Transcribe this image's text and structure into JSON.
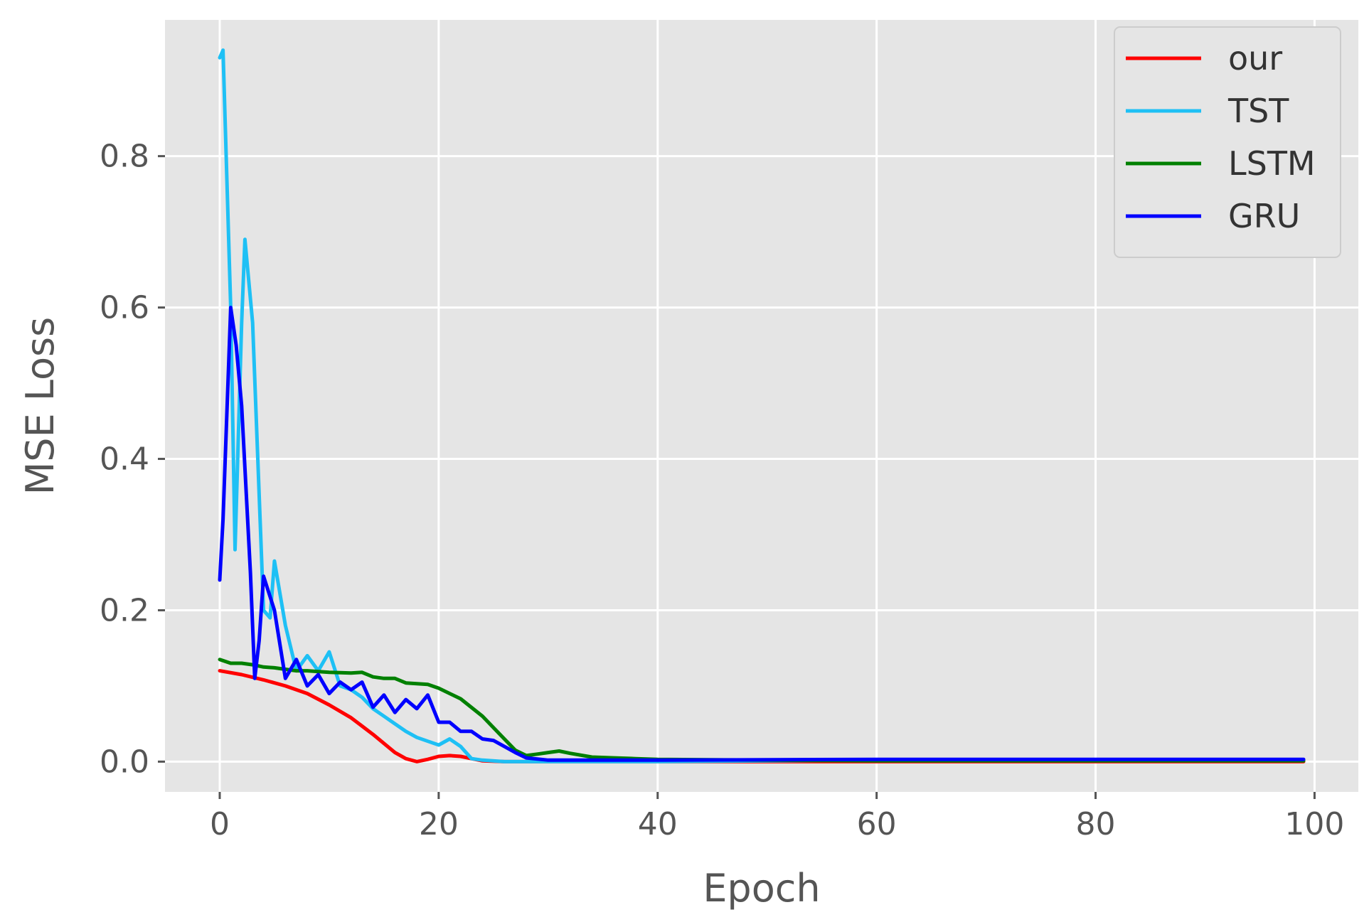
{
  "chart_data": {
    "type": "line",
    "title": "",
    "xlabel": "Epoch",
    "ylabel": "MSE Loss",
    "xlim": [
      -5,
      104
    ],
    "ylim": [
      -0.04,
      0.98
    ],
    "xticks": [
      0,
      20,
      40,
      60,
      80,
      100
    ],
    "yticks": [
      0.0,
      0.2,
      0.4,
      0.6,
      0.8
    ],
    "xtick_labels": [
      "0",
      "20",
      "40",
      "60",
      "80",
      "100"
    ],
    "ytick_labels": [
      "0.0",
      "0.2",
      "0.4",
      "0.6",
      "0.8"
    ],
    "grid": true,
    "legend_position": "top-right",
    "style": {
      "plot_background": "#e5e5e5",
      "grid_color": "#ffffff",
      "legend_background": "#e5e5e5",
      "legend_border": "#cccccc"
    },
    "series": [
      {
        "name": "our",
        "color": "#ff0000",
        "points": [
          [
            0,
            0.12
          ],
          [
            2,
            0.115
          ],
          [
            4,
            0.108
          ],
          [
            6,
            0.1
          ],
          [
            8,
            0.09
          ],
          [
            10,
            0.075
          ],
          [
            12,
            0.058
          ],
          [
            14,
            0.036
          ],
          [
            16,
            0.012
          ],
          [
            17,
            0.004
          ],
          [
            18,
            0.0
          ],
          [
            19,
            0.003
          ],
          [
            20,
            0.007
          ],
          [
            21,
            0.008
          ],
          [
            22,
            0.007
          ],
          [
            23,
            0.004
          ],
          [
            24,
            0.001
          ],
          [
            26,
            0.0
          ],
          [
            30,
            0.0
          ],
          [
            40,
            0.0
          ],
          [
            60,
            0.0
          ],
          [
            80,
            0.0
          ],
          [
            99,
            0.0
          ]
        ]
      },
      {
        "name": "TST",
        "color": "#1ec0f5",
        "points": [
          [
            0,
            0.93
          ],
          [
            0.3,
            0.94
          ],
          [
            1,
            0.6
          ],
          [
            1.4,
            0.28
          ],
          [
            2,
            0.58
          ],
          [
            2.3,
            0.69
          ],
          [
            3,
            0.58
          ],
          [
            4,
            0.2
          ],
          [
            4.6,
            0.19
          ],
          [
            5,
            0.265
          ],
          [
            6,
            0.18
          ],
          [
            7,
            0.12
          ],
          [
            8,
            0.14
          ],
          [
            9,
            0.12
          ],
          [
            10,
            0.145
          ],
          [
            11,
            0.1
          ],
          [
            12,
            0.095
          ],
          [
            13,
            0.085
          ],
          [
            14,
            0.07
          ],
          [
            15,
            0.06
          ],
          [
            16,
            0.05
          ],
          [
            17,
            0.04
          ],
          [
            18,
            0.032
          ],
          [
            19,
            0.027
          ],
          [
            20,
            0.022
          ],
          [
            21,
            0.03
          ],
          [
            22,
            0.02
          ],
          [
            23,
            0.004
          ],
          [
            24,
            0.002
          ],
          [
            26,
            0.0
          ],
          [
            30,
            0.0
          ],
          [
            40,
            0.0
          ],
          [
            60,
            0.002
          ],
          [
            80,
            0.002
          ],
          [
            99,
            0.002
          ]
        ]
      },
      {
        "name": "LSTM",
        "color": "#008000",
        "points": [
          [
            0,
            0.135
          ],
          [
            1,
            0.13
          ],
          [
            2,
            0.13
          ],
          [
            3,
            0.128
          ],
          [
            4,
            0.125
          ],
          [
            5,
            0.124
          ],
          [
            6,
            0.122
          ],
          [
            7,
            0.12
          ],
          [
            8,
            0.12
          ],
          [
            10,
            0.118
          ],
          [
            12,
            0.117
          ],
          [
            13,
            0.118
          ],
          [
            14,
            0.112
          ],
          [
            15,
            0.11
          ],
          [
            16,
            0.11
          ],
          [
            17,
            0.104
          ],
          [
            18,
            0.103
          ],
          [
            19,
            0.102
          ],
          [
            20,
            0.097
          ],
          [
            22,
            0.083
          ],
          [
            24,
            0.06
          ],
          [
            26,
            0.03
          ],
          [
            27,
            0.015
          ],
          [
            28,
            0.008
          ],
          [
            29,
            0.01
          ],
          [
            30,
            0.012
          ],
          [
            31,
            0.014
          ],
          [
            32,
            0.011
          ],
          [
            34,
            0.006
          ],
          [
            36,
            0.005
          ],
          [
            38,
            0.004
          ],
          [
            40,
            0.003
          ],
          [
            50,
            0.002
          ],
          [
            60,
            0.001
          ],
          [
            80,
            0.001
          ],
          [
            99,
            0.001
          ]
        ]
      },
      {
        "name": "GRU",
        "color": "#0000ff",
        "points": [
          [
            0,
            0.24
          ],
          [
            0.3,
            0.32
          ],
          [
            1,
            0.6
          ],
          [
            1.5,
            0.55
          ],
          [
            2,
            0.47
          ],
          [
            2.8,
            0.25
          ],
          [
            3.2,
            0.11
          ],
          [
            3.6,
            0.16
          ],
          [
            4,
            0.245
          ],
          [
            5,
            0.2
          ],
          [
            6,
            0.11
          ],
          [
            7,
            0.135
          ],
          [
            8,
            0.1
          ],
          [
            9,
            0.115
          ],
          [
            10,
            0.09
          ],
          [
            11,
            0.105
          ],
          [
            12,
            0.095
          ],
          [
            13,
            0.105
          ],
          [
            14,
            0.072
          ],
          [
            15,
            0.088
          ],
          [
            16,
            0.065
          ],
          [
            17,
            0.082
          ],
          [
            18,
            0.07
          ],
          [
            19,
            0.088
          ],
          [
            20,
            0.052
          ],
          [
            21,
            0.052
          ],
          [
            22,
            0.04
          ],
          [
            23,
            0.04
          ],
          [
            24,
            0.03
          ],
          [
            25,
            0.028
          ],
          [
            26,
            0.02
          ],
          [
            27,
            0.012
          ],
          [
            28,
            0.005
          ],
          [
            30,
            0.002
          ],
          [
            40,
            0.002
          ],
          [
            60,
            0.003
          ],
          [
            80,
            0.003
          ],
          [
            99,
            0.003
          ]
        ]
      }
    ]
  }
}
